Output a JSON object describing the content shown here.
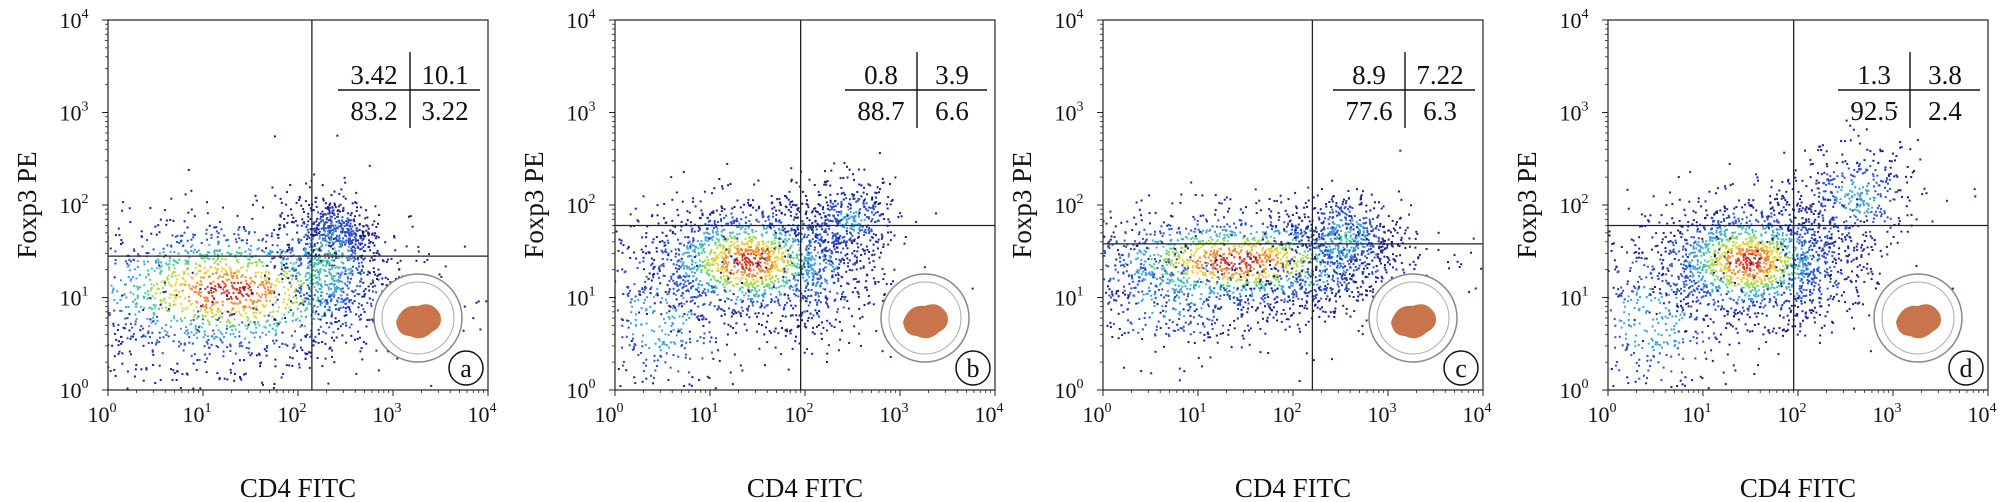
{
  "figure": {
    "panel_labels": [
      "a",
      "b",
      "c",
      "d"
    ]
  },
  "colors": {
    "density": [
      "#1a1f8f",
      "#2a4fc8",
      "#3fa0e0",
      "#47c9a0",
      "#9fd94a",
      "#e8d23a",
      "#f08a2a",
      "#d9341e"
    ],
    "gate": "#222222",
    "logo": "#c9744a"
  },
  "chart_data": [
    {
      "type": "scatter",
      "panel": "a",
      "xlabel": "CD4 FITC",
      "ylabel": "Foxp3 PE",
      "xscale": "log",
      "yscale": "log",
      "xlim": [
        1,
        10000
      ],
      "ylim": [
        1,
        10000
      ],
      "tick_labels": [
        "10",
        "10",
        "10",
        "10",
        "10"
      ],
      "tick_exponents": [
        "0",
        "1",
        "2",
        "3",
        "4"
      ],
      "gate": {
        "x": 140,
        "y": 28
      },
      "quadrants": {
        "upper_left": "3.42",
        "upper_right": "10.1",
        "lower_left": "83.2",
        "lower_right": "3.22"
      },
      "clusters": [
        {
          "x": 18,
          "y": 12,
          "sx": 0.95,
          "sy": 0.4,
          "w": 0.62
        },
        {
          "x": 260,
          "y": 55,
          "sx": 0.18,
          "sy": 0.16,
          "w": 0.1
        },
        {
          "x": 200,
          "y": 25,
          "sx": 0.28,
          "sy": 0.38,
          "w": 0.22
        },
        {
          "x": 8,
          "y": 4,
          "sx": 0.7,
          "sy": 0.35,
          "w": 0.06
        }
      ]
    },
    {
      "type": "scatter",
      "panel": "b",
      "xlabel": "CD4 FITC",
      "ylabel": "Foxp3 PE",
      "xscale": "log",
      "yscale": "log",
      "xlim": [
        1,
        10000
      ],
      "ylim": [
        1,
        10000
      ],
      "tick_labels": [
        "10",
        "10",
        "10",
        "10",
        "10"
      ],
      "tick_exponents": [
        "0",
        "1",
        "2",
        "3",
        "4"
      ],
      "gate": {
        "x": 90,
        "y": 60
      },
      "quadrants": {
        "upper_left": "0.8",
        "upper_right": "3.9",
        "lower_left": "88.7",
        "lower_right": "6.6"
      },
      "clusters": [
        {
          "x": 25,
          "y": 25,
          "sx": 0.55,
          "sy": 0.32,
          "w": 0.6
        },
        {
          "x": 3,
          "y": 6,
          "sx": 0.5,
          "sy": 0.5,
          "w": 0.15
        },
        {
          "x": 300,
          "y": 70,
          "sx": 0.25,
          "sy": 0.22,
          "w": 0.13
        },
        {
          "x": 150,
          "y": 20,
          "sx": 0.3,
          "sy": 0.45,
          "w": 0.12
        }
      ]
    },
    {
      "type": "scatter",
      "panel": "c",
      "xlabel": "CD4 FITC",
      "ylabel": "Foxp3 PE",
      "xscale": "log",
      "yscale": "log",
      "xlim": [
        1,
        10000
      ],
      "ylim": [
        1,
        10000
      ],
      "tick_labels": [
        "10",
        "10",
        "10",
        "10",
        "10"
      ],
      "tick_exponents": [
        "0",
        "1",
        "2",
        "3",
        "4"
      ],
      "gate": {
        "x": 160,
        "y": 38
      },
      "quadrants": {
        "upper_left": "8.9",
        "upper_right": "7.22",
        "lower_left": "77.6",
        "lower_right": "6.3"
      },
      "clusters": [
        {
          "x": 25,
          "y": 25,
          "sx": 0.9,
          "sy": 0.28,
          "w": 0.6
        },
        {
          "x": 350,
          "y": 45,
          "sx": 0.28,
          "sy": 0.25,
          "w": 0.18
        },
        {
          "x": 5,
          "y": 10,
          "sx": 0.6,
          "sy": 0.35,
          "w": 0.14
        },
        {
          "x": 150,
          "y": 18,
          "sx": 0.35,
          "sy": 0.3,
          "w": 0.08
        }
      ]
    },
    {
      "type": "scatter",
      "panel": "d",
      "xlabel": "CD4 FITC",
      "ylabel": "Foxp3 PE",
      "xscale": "log",
      "yscale": "log",
      "xlim": [
        1,
        10000
      ],
      "ylim": [
        1,
        10000
      ],
      "tick_labels": [
        "10",
        "10",
        "10",
        "10",
        "10"
      ],
      "tick_exponents": [
        "0",
        "1",
        "2",
        "3",
        "4"
      ],
      "gate": {
        "x": 90,
        "y": 60
      },
      "quadrants": {
        "upper_left": "1.3",
        "upper_right": "3.8",
        "lower_left": "92.5",
        "lower_right": "2.4"
      },
      "clusters": [
        {
          "x": 30,
          "y": 25,
          "sx": 0.5,
          "sy": 0.32,
          "w": 0.6
        },
        {
          "x": 3,
          "y": 6,
          "sx": 0.5,
          "sy": 0.5,
          "w": 0.16
        },
        {
          "x": 400,
          "y": 120,
          "sx": 0.35,
          "sy": 0.3,
          "w": 0.14
        },
        {
          "x": 150,
          "y": 25,
          "sx": 0.3,
          "sy": 0.4,
          "w": 0.1
        }
      ]
    }
  ]
}
